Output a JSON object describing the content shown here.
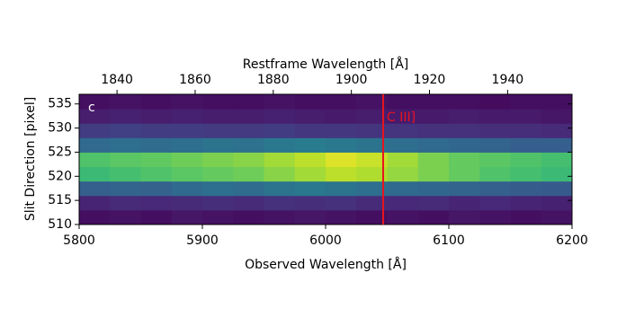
{
  "chart_data": {
    "type": "heatmap",
    "panel_label": "c",
    "xlabel": "Observed Wavelength [Å]",
    "x2label": "Restframe Wavelength [Å]",
    "ylabel": "Slit Direction [pixel]",
    "xlim": [
      5800,
      6200
    ],
    "xticks": [
      5800,
      5900,
      6000,
      6100,
      6200
    ],
    "x2lim": [
      1830.3,
      1956.5
    ],
    "x2ticks": [
      1840,
      1860,
      1880,
      1900,
      1920,
      1940
    ],
    "ylim": [
      510,
      537
    ],
    "yticks": [
      510,
      515,
      520,
      525,
      530,
      535
    ],
    "x_bins": [
      5800,
      5825,
      5850,
      5875,
      5900,
      5925,
      5950,
      5975,
      6000,
      6025,
      6050,
      6075,
      6100,
      6125,
      6150,
      6175,
      6200
    ],
    "y_bins": [
      510,
      513,
      516,
      519,
      522,
      525,
      528,
      531,
      534,
      537
    ],
    "zlim": [
      0,
      100
    ],
    "colormap": "viridis",
    "z": [
      [
        4,
        5,
        4,
        6,
        5,
        4,
        5,
        6,
        5,
        4,
        5,
        4,
        6,
        5,
        4,
        5
      ],
      [
        10,
        12,
        11,
        12,
        13,
        12,
        14,
        13,
        14,
        12,
        11,
        12,
        10,
        11,
        10,
        9
      ],
      [
        30,
        32,
        31,
        34,
        36,
        35,
        38,
        40,
        38,
        36,
        34,
        33,
        32,
        30,
        29,
        28
      ],
      [
        68,
        70,
        72,
        74,
        76,
        78,
        82,
        86,
        90,
        88,
        84,
        80,
        76,
        72,
        70,
        68
      ],
      [
        72,
        74,
        75,
        78,
        80,
        82,
        86,
        90,
        95,
        92,
        86,
        80,
        76,
        74,
        72,
        70
      ],
      [
        34,
        36,
        35,
        36,
        38,
        37,
        40,
        42,
        40,
        38,
        36,
        34,
        33,
        32,
        30,
        30
      ],
      [
        18,
        19,
        18,
        18,
        17,
        17,
        18,
        16,
        16,
        15,
        15,
        14,
        14,
        13,
        13,
        12
      ],
      [
        8,
        9,
        8,
        9,
        8,
        8,
        9,
        8,
        7,
        8,
        7,
        7,
        8,
        7,
        7,
        6
      ],
      [
        4,
        5,
        4,
        5,
        4,
        4,
        5,
        4,
        4,
        5,
        4,
        4,
        4,
        3,
        4,
        4
      ]
    ],
    "line": {
      "x": 6046.7,
      "label": "C III]",
      "color": "#e8141e"
    }
  }
}
